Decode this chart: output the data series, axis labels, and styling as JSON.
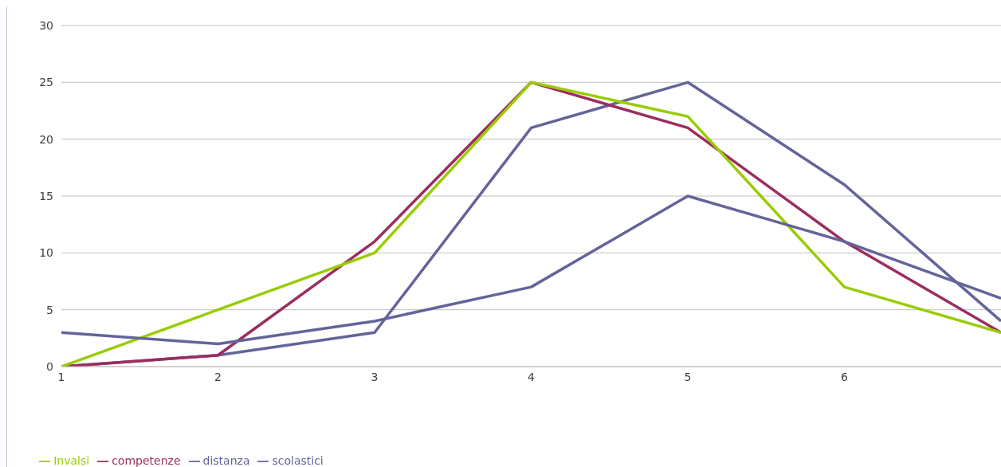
{
  "chart_data": {
    "type": "line",
    "x": [
      1,
      2,
      3,
      4,
      5,
      6,
      7
    ],
    "series": [
      {
        "name": "scolastici",
        "color": "#64649a",
        "values": [
          0,
          1,
          3,
          21,
          25,
          16,
          4
        ]
      },
      {
        "name": "competenze",
        "color": "#9b2d5f",
        "values": [
          0,
          1,
          11,
          25,
          21,
          11,
          3
        ]
      },
      {
        "name": "Invalsi",
        "color": "#99cc00",
        "values": [
          0,
          5,
          10,
          25,
          22,
          7,
          3
        ]
      },
      {
        "name": "distanza",
        "color": "#64649a",
        "values": [
          3,
          2,
          4,
          7,
          15,
          11,
          6
        ]
      }
    ],
    "xlim": [
      1,
      7
    ],
    "xticks": [
      1,
      2,
      3,
      4,
      5,
      6
    ],
    "ylim": [
      0,
      30
    ],
    "yticks": [
      0,
      5,
      10,
      15,
      20,
      25,
      30
    ],
    "grid": "y",
    "legend": "bottom",
    "marker": "none",
    "line_style": "solid"
  }
}
